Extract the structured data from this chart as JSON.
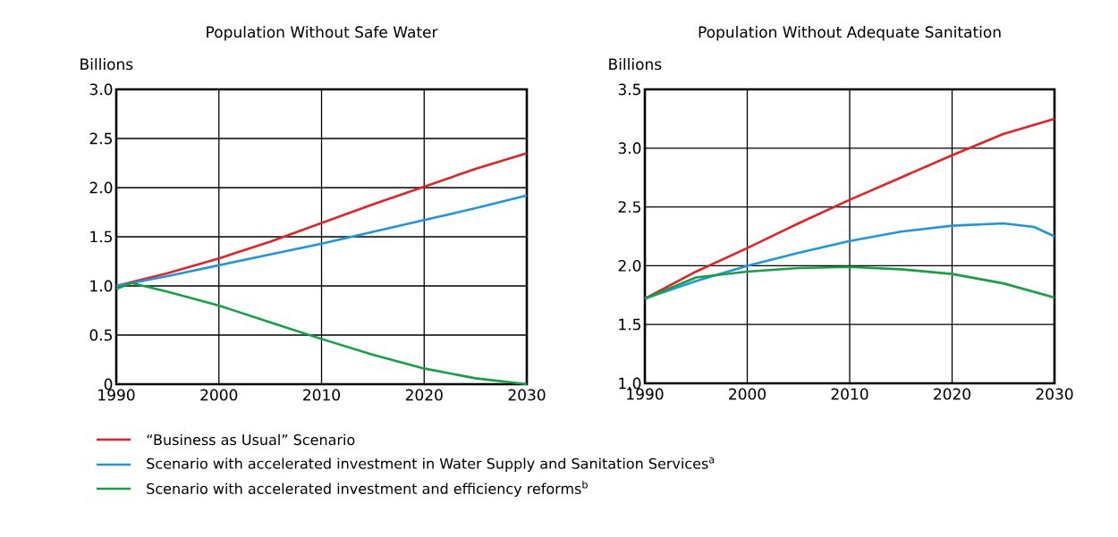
{
  "chart_data": [
    {
      "type": "line",
      "title": "Population Without Safe Water",
      "ylabel": "Billions",
      "xlim": [
        1990,
        2030
      ],
      "ylim": [
        0,
        3.0
      ],
      "xticks": [
        1990,
        2000,
        2010,
        2020,
        2030
      ],
      "yticks": [
        0,
        {
          "value": 0.5,
          "label": "0.5"
        },
        {
          "value": 1.0,
          "label": "1.0"
        },
        {
          "value": 1.5,
          "label": "1.5"
        },
        {
          "value": 2.0,
          "label": "2.0"
        },
        {
          "value": 2.5,
          "label": "2.5"
        },
        {
          "value": 3.0,
          "label": "3.0"
        }
      ],
      "grid": true,
      "legend": "bottom",
      "line_style": "solid",
      "marker": "none",
      "series": [
        {
          "name": "“Business as Usual” Scenario",
          "color": "#e32228",
          "x": [
            1990,
            1995,
            2000,
            2005,
            2010,
            2015,
            2020,
            2025,
            2030
          ],
          "values": [
            1.0,
            1.13,
            1.28,
            1.45,
            1.64,
            1.83,
            2.01,
            2.19,
            2.35
          ]
        },
        {
          "name": "Scenario with accelerated investment in Water Supply and Sanitation Services$^{a}$",
          "color": "#1e96dc",
          "x": [
            1990,
            1995,
            2000,
            2005,
            2010,
            2015,
            2020,
            2025,
            2030
          ],
          "values": [
            1.0,
            1.1,
            1.21,
            1.32,
            1.43,
            1.55,
            1.67,
            1.79,
            1.92
          ]
        },
        {
          "name": "Scenario with accelerated investment and efficiency reforms$^{b}$",
          "color": "#13a046",
          "x": [
            1990,
            1991.5,
            1995,
            2000,
            2005,
            2010,
            2015,
            2020,
            2025,
            2030
          ],
          "values": [
            0.97,
            1.03,
            0.94,
            0.8,
            0.63,
            0.46,
            0.3,
            0.16,
            0.06,
            0.0
          ]
        }
      ]
    },
    {
      "type": "line",
      "title": "Population Without Adequate Sanitation",
      "ylabel": "Billions",
      "xlim": [
        1990,
        2030
      ],
      "ylim": [
        1.0,
        3.5
      ],
      "xticks": [
        1990,
        2000,
        2010,
        2020,
        2030
      ],
      "yticks": [
        {
          "value": 1.0,
          "label": "1.0"
        },
        {
          "value": 1.5,
          "label": "1.5"
        },
        {
          "value": 2.0,
          "label": "2.0"
        },
        {
          "value": 2.5,
          "label": "2.5"
        },
        {
          "value": 3.0,
          "label": "3.0"
        },
        {
          "value": 3.5,
          "label": "3.5"
        }
      ],
      "grid": true,
      "line_style": "solid",
      "marker": "none",
      "series": [
        {
          "color": "#e32228",
          "x": [
            1990,
            1995,
            2000,
            2005,
            2010,
            2015,
            2020,
            2025,
            2030
          ],
          "values": [
            1.72,
            1.95,
            2.15,
            2.36,
            2.56,
            2.75,
            2.94,
            3.12,
            3.25
          ]
        },
        {
          "color": "#1e96dc",
          "x": [
            1990,
            1995,
            2000,
            2005,
            2010,
            2015,
            2020,
            2025,
            2028,
            2030
          ],
          "values": [
            1.72,
            1.87,
            2.0,
            2.11,
            2.21,
            2.29,
            2.34,
            2.36,
            2.33,
            2.25
          ]
        },
        {
          "color": "#13a046",
          "x": [
            1990,
            1995,
            2000,
            2005,
            2010,
            2015,
            2020,
            2025,
            2030
          ],
          "values": [
            1.72,
            1.9,
            1.95,
            1.98,
            1.99,
            1.97,
            1.93,
            1.85,
            1.73
          ]
        }
      ]
    }
  ]
}
